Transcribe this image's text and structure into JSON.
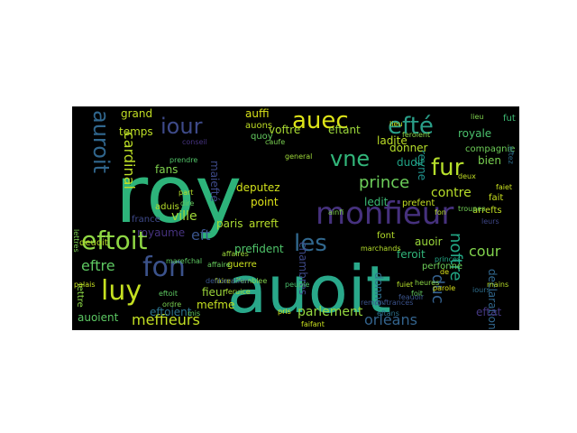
{
  "palette": {
    "background": "#000000",
    "page": "#ffffff"
  },
  "words": [
    {
      "text": "roy",
      "color": "#2db37a"
    },
    {
      "text": "auoit",
      "color": "#29a88a"
    },
    {
      "text": "monfieur",
      "color": "#46317e"
    },
    {
      "text": "eftoit",
      "color": "#8fd744"
    },
    {
      "text": "fon",
      "color": "#3b528b"
    },
    {
      "text": "luy",
      "color": "#c5e021"
    },
    {
      "text": "auec",
      "color": "#dde318"
    },
    {
      "text": "efté",
      "color": "#2a9f89"
    },
    {
      "text": "iour",
      "color": "#3e4a89"
    },
    {
      "text": "les",
      "color": "#31688e"
    },
    {
      "text": "fur",
      "color": "#b5de2b"
    },
    {
      "text": "auroit",
      "color": "#30668d"
    },
    {
      "text": "vne",
      "color": "#32b67a"
    },
    {
      "text": "prince",
      "color": "#6ccd5a"
    },
    {
      "text": "cardinal",
      "color": "#bddf26"
    },
    {
      "text": "eftre",
      "color": "#5ec962"
    },
    {
      "text": "eft",
      "color": "#3a548c"
    },
    {
      "text": "contre",
      "color": "#b8de29"
    },
    {
      "text": "cour",
      "color": "#82d34d"
    },
    {
      "text": "noftre",
      "color": "#22a785"
    },
    {
      "text": "orleans",
      "color": "#33638d"
    },
    {
      "text": "meffieurs",
      "color": "#c2df23"
    },
    {
      "text": "duc",
      "color": "#34608d"
    },
    {
      "text": "auoient",
      "color": "#5cc863"
    },
    {
      "text": "eftoient",
      "color": "#2c738e"
    },
    {
      "text": "chambres",
      "color": "#3e4989"
    },
    {
      "text": "parlement",
      "color": "#95d840"
    },
    {
      "text": "reyne",
      "color": "#20928c"
    },
    {
      "text": "feroit",
      "color": "#31b57b"
    },
    {
      "text": "declaration",
      "color": "#31678e"
    },
    {
      "text": "royale",
      "color": "#4ac16d"
    },
    {
      "text": "compagnie",
      "color": "#6ece58"
    },
    {
      "text": "bien",
      "color": "#7ad151"
    },
    {
      "text": "ladite",
      "color": "#bddf26"
    },
    {
      "text": "donner",
      "color": "#b5de2b"
    },
    {
      "text": "dudit",
      "color": "#20a386"
    },
    {
      "text": "ledit",
      "color": "#3bbb75"
    },
    {
      "text": "voftre",
      "color": "#aadc32"
    },
    {
      "text": "eftant",
      "color": "#9dd93b"
    },
    {
      "text": "auffi",
      "color": "#d8e219"
    },
    {
      "text": "auons",
      "color": "#c0df25"
    },
    {
      "text": "quoy",
      "color": "#63cb5f"
    },
    {
      "text": "temps",
      "color": "#bddf26"
    },
    {
      "text": "grand",
      "color": "#c2df23"
    },
    {
      "text": "fans",
      "color": "#7fd34e"
    },
    {
      "text": "aduis",
      "color": "#b5de2b"
    },
    {
      "text": "ville",
      "color": "#a0da39"
    },
    {
      "text": "royaume",
      "color": "#46327e"
    },
    {
      "text": "france",
      "color": "#3e4989"
    },
    {
      "text": "paris",
      "color": "#a8db34"
    },
    {
      "text": "arreft",
      "color": "#b8de29"
    },
    {
      "text": "prefident",
      "color": "#4fc46a"
    },
    {
      "text": "deputez",
      "color": "#d2e21b"
    },
    {
      "text": "point",
      "color": "#dde318"
    },
    {
      "text": "maiefté",
      "color": "#3e4a89"
    },
    {
      "text": "fieur",
      "color": "#9dd93b"
    },
    {
      "text": "mefme",
      "color": "#c5e021"
    },
    {
      "text": "font",
      "color": "#b5de2b"
    },
    {
      "text": "auoir",
      "color": "#9bd93c"
    },
    {
      "text": "donné",
      "color": "#2e6e8e"
    },
    {
      "text": "guerre",
      "color": "#cae11f"
    },
    {
      "text": "lettre",
      "color": "#8bd646"
    },
    {
      "text": "arrefts",
      "color": "#c2df23"
    },
    {
      "text": "fait",
      "color": "#cae11f"
    },
    {
      "text": "eftat",
      "color": "#453882"
    },
    {
      "text": "general",
      "color": "#9fda3a"
    },
    {
      "text": "deuoit",
      "color": "#b8de29"
    },
    {
      "text": "palais",
      "color": "#c8e020"
    },
    {
      "text": "perfonne",
      "color": "#6ece58"
    },
    {
      "text": "affemblee",
      "color": "#81d34d"
    },
    {
      "text": "prefent",
      "color": "#c2df23"
    },
    {
      "text": "troupes",
      "color": "#73d056"
    },
    {
      "text": "feroient",
      "color": "#8bd646"
    },
    {
      "text": "fut",
      "color": "#3dbc74"
    },
    {
      "text": "prendre",
      "color": "#52c569"
    },
    {
      "text": "marefchal",
      "color": "#5ec962"
    },
    {
      "text": "affaire",
      "color": "#67cc5c"
    },
    {
      "text": "faire",
      "color": "#c5e021"
    },
    {
      "text": "affaires",
      "color": "#9dd93b"
    },
    {
      "text": "parole",
      "color": "#d8e219"
    },
    {
      "text": "lieu",
      "color": "#c8e020"
    },
    {
      "text": "iours",
      "color": "#2e6e8e"
    },
    {
      "text": "marchands",
      "color": "#b5de2b"
    },
    {
      "text": "princes",
      "color": "#22a785"
    },
    {
      "text": "foit",
      "color": "#63cb5f"
    },
    {
      "text": "fuiet",
      "color": "#b5de2b"
    },
    {
      "text": "fon",
      "color": "#b8de29"
    },
    {
      "text": "de",
      "color": "#dde318"
    },
    {
      "text": "ainfi",
      "color": "#7fd34e"
    },
    {
      "text": "deliberation",
      "color": "#39558c"
    },
    {
      "text": "feruice",
      "color": "#a8db34"
    },
    {
      "text": "conseil",
      "color": "#46337f"
    },
    {
      "text": "faiet",
      "color": "#cae11f"
    },
    {
      "text": "peuple",
      "color": "#4ac16d"
    },
    {
      "text": "ordre",
      "color": "#7ad151"
    },
    {
      "text": "eftoit",
      "color": "#5ec962"
    },
    {
      "text": "remonftrances",
      "color": "#3b528b"
    },
    {
      "text": "pris",
      "color": "#d2e21b"
    },
    {
      "text": "caufe",
      "color": "#7ad151"
    },
    {
      "text": "mains",
      "color": "#b8de29"
    },
    {
      "text": "faifant",
      "color": "#cae11f"
    },
    {
      "text": "eftans",
      "color": "#2c728e"
    },
    {
      "text": "leurs",
      "color": "#3f4788"
    },
    {
      "text": "mis",
      "color": "#63cb5f"
    },
    {
      "text": "lieu",
      "color": "#7fd34e"
    },
    {
      "text": "eftez",
      "color": "#2e6e8e"
    },
    {
      "text": "dire",
      "color": "#63cb5f"
    },
    {
      "text": "part",
      "color": "#b5de2b"
    },
    {
      "text": "feauoir",
      "color": "#3a548c"
    },
    {
      "text": "heures",
      "color": "#8bd646"
    },
    {
      "text": "deux",
      "color": "#c2df23"
    },
    {
      "text": "lettres",
      "color": "#7ad151"
    }
  ]
}
